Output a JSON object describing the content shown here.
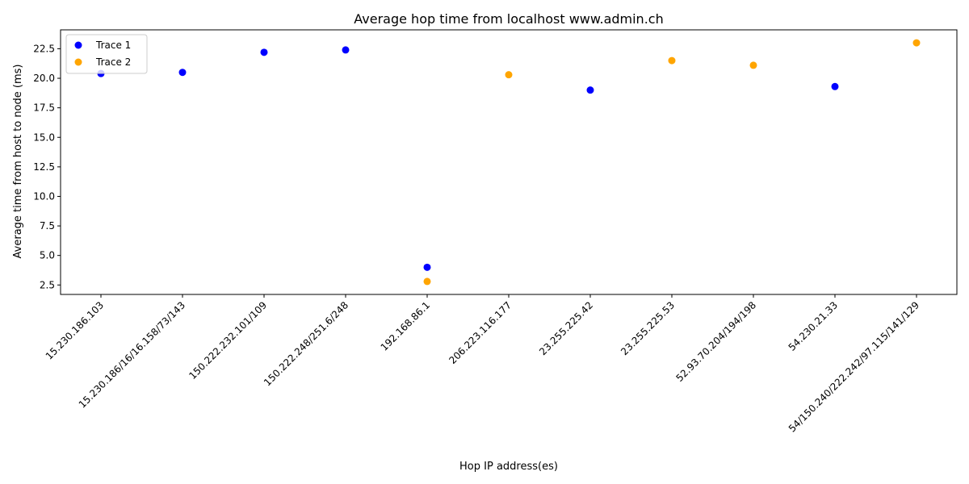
{
  "chart_data": {
    "type": "scatter",
    "title": "Average hop time from localhost www.admin.ch",
    "xlabel": "Hop IP address(es)",
    "ylabel": "Average time from host to node (ms)",
    "categories": [
      "15.230.186.103",
      "15.230.186/16/16.158/73/143",
      "150.222.232.101/109",
      "150.222.248/251.6/248",
      "192.168.86.1",
      "206.223.116.177",
      "23.255.225.42",
      "23.255.225.53",
      "52.93.70.204/194/198",
      "54.230.21.33",
      "54/150.240/222.242/97.115/141/129"
    ],
    "ylim": [
      1.7,
      24.1
    ],
    "yticks": [
      2.5,
      5.0,
      7.5,
      10.0,
      12.5,
      15.0,
      17.5,
      20.0,
      22.5
    ],
    "ytick_labels": [
      "2.5",
      "5.0",
      "7.5",
      "10.0",
      "12.5",
      "15.0",
      "17.5",
      "20.0",
      "22.5"
    ],
    "legend": "upper-left",
    "grid": false,
    "series": [
      {
        "name": "Trace 1",
        "color": "#0000ff",
        "points": [
          {
            "x": "15.230.186.103",
            "y": 20.4
          },
          {
            "x": "15.230.186/16/16.158/73/143",
            "y": 20.5
          },
          {
            "x": "150.222.232.101/109",
            "y": 22.2
          },
          {
            "x": "150.222.248/251.6/248",
            "y": 22.4
          },
          {
            "x": "192.168.86.1",
            "y": 4.0
          },
          {
            "x": "23.255.225.42",
            "y": 19.0
          },
          {
            "x": "54.230.21.33",
            "y": 19.3
          }
        ]
      },
      {
        "name": "Trace 2",
        "color": "#ffa500",
        "points": [
          {
            "x": "192.168.86.1",
            "y": 2.8
          },
          {
            "x": "206.223.116.177",
            "y": 20.3
          },
          {
            "x": "23.255.225.53",
            "y": 21.5
          },
          {
            "x": "52.93.70.204/194/198",
            "y": 21.1
          },
          {
            "x": "54/150.240/222.242/97.115/141/129",
            "y": 23.0
          }
        ]
      }
    ]
  }
}
